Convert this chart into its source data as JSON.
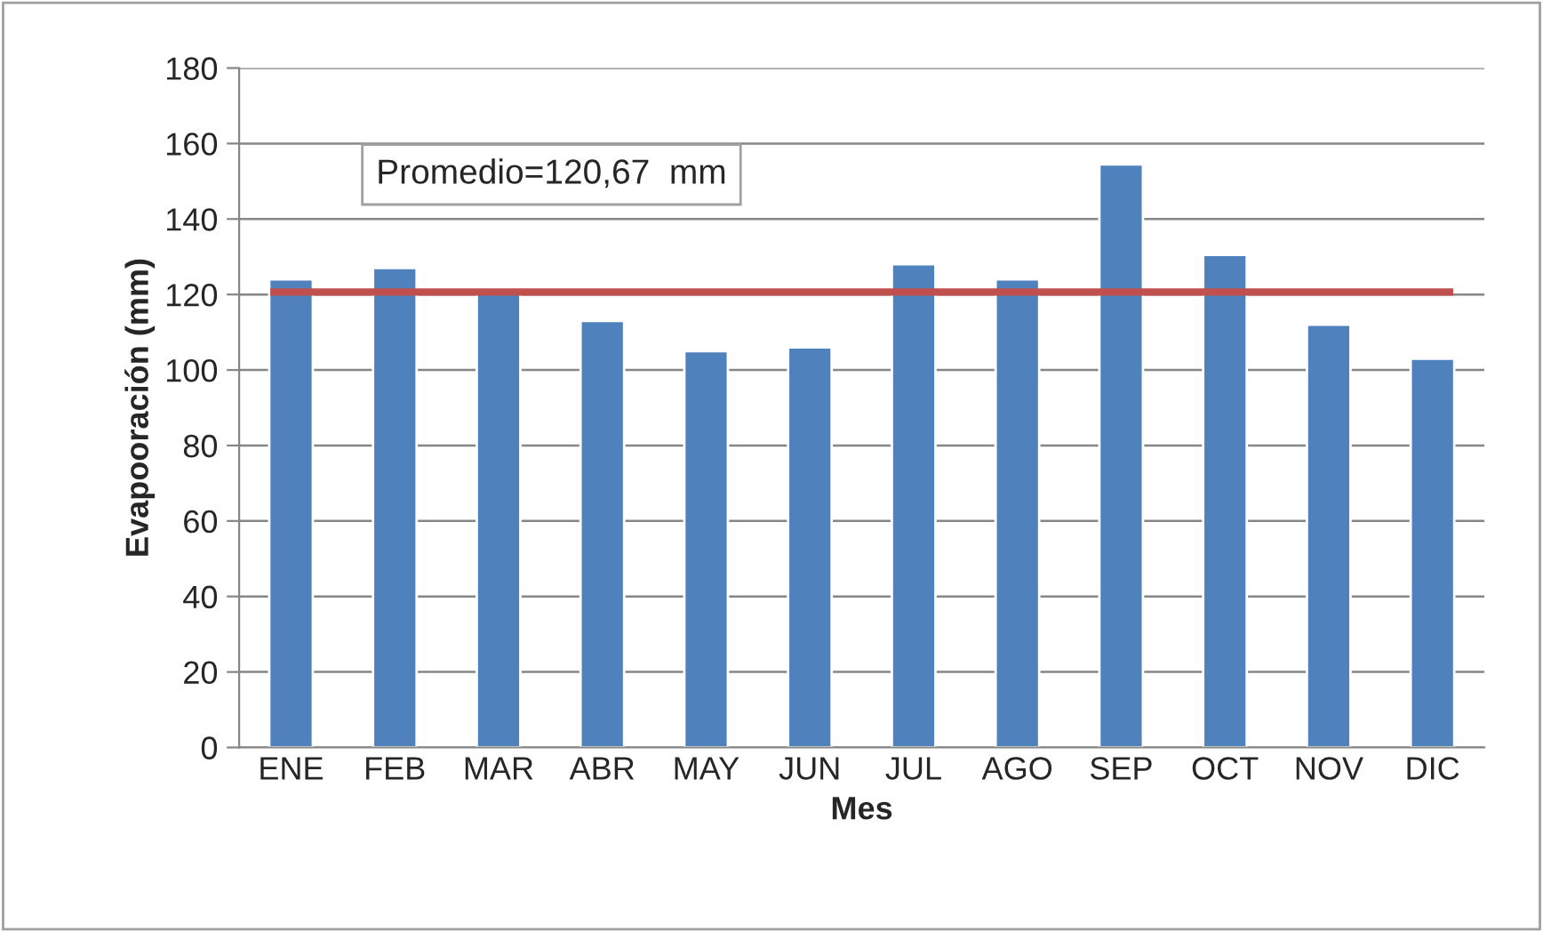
{
  "chart_data": {
    "type": "bar",
    "categories": [
      "ENE",
      "FEB",
      "MAR",
      "ABR",
      "MAY",
      "JUN",
      "JUL",
      "AGO",
      "SEP",
      "OCT",
      "NOV",
      "DIC"
    ],
    "values": [
      124,
      127,
      121,
      113,
      105,
      106,
      128,
      124,
      154.5,
      130.5,
      112,
      103
    ],
    "color": "#4f81bd",
    "xlabel": "Mes",
    "ylabel": "Evapooración (mm)",
    "ylim": [
      0,
      180
    ],
    "yticks": [
      0,
      20,
      40,
      60,
      80,
      100,
      120,
      140,
      160,
      180
    ],
    "grid": "y",
    "ref_lines": [
      {
        "axis": "y",
        "value": 120.67,
        "color": "#c0504d"
      }
    ],
    "annotations": [
      "Promedio=120,67  mm"
    ]
  }
}
